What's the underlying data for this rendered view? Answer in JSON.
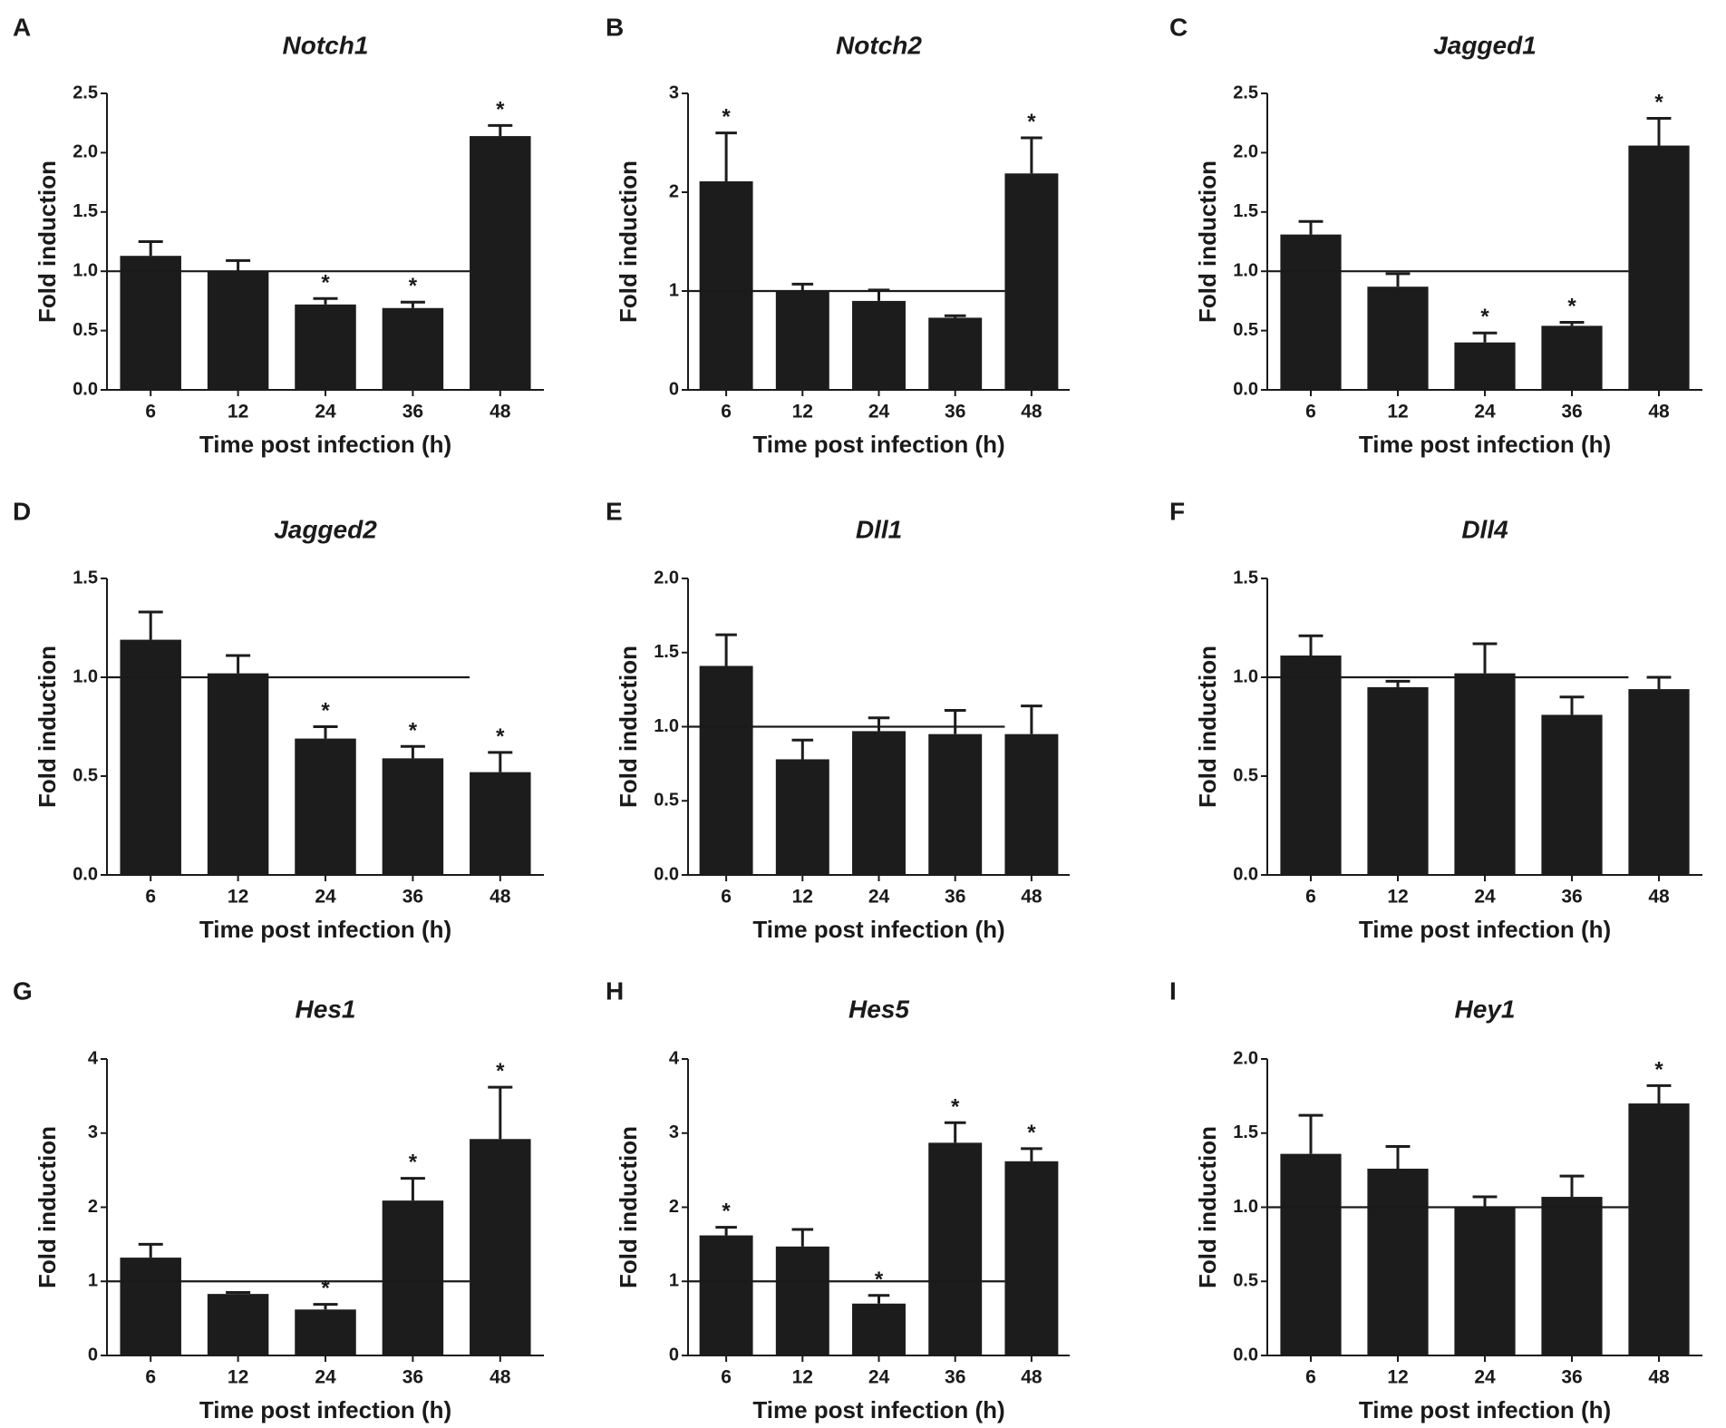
{
  "chart_data": [
    {
      "type": "bar",
      "panel": "A",
      "title": "Notch1",
      "xlabel": "Time post infection (h)",
      "ylabel": "Fold induction",
      "categories": [
        "6",
        "12",
        "24",
        "36",
        "48"
      ],
      "values": [
        1.13,
        1.0,
        0.72,
        0.69,
        2.14
      ],
      "errors": [
        0.12,
        0.09,
        0.05,
        0.05,
        0.09
      ],
      "significant": [
        false,
        false,
        true,
        true,
        true
      ],
      "ylim": [
        0,
        2.5
      ],
      "yticks": [
        "0.0",
        "0.5",
        "1.0",
        "1.5",
        "2.0",
        "2.5"
      ],
      "reference_line": 1.0
    },
    {
      "type": "bar",
      "panel": "B",
      "title": "Notch2",
      "xlabel": "Time post infection (h)",
      "ylabel": "Fold induction",
      "categories": [
        "6",
        "12",
        "24",
        "36",
        "48"
      ],
      "values": [
        2.11,
        1.0,
        0.9,
        0.73,
        2.19
      ],
      "errors": [
        0.49,
        0.07,
        0.11,
        0.02,
        0.36
      ],
      "significant": [
        true,
        false,
        false,
        false,
        true
      ],
      "ylim": [
        0,
        3
      ],
      "yticks": [
        "0",
        "1",
        "2",
        "3"
      ],
      "reference_line": 1.0
    },
    {
      "type": "bar",
      "panel": "C",
      "title": "Jagged1",
      "xlabel": "Time post infection (h)",
      "ylabel": "Fold induction",
      "categories": [
        "6",
        "12",
        "24",
        "36",
        "48"
      ],
      "values": [
        1.31,
        0.87,
        0.4,
        0.54,
        2.06
      ],
      "errors": [
        0.11,
        0.11,
        0.08,
        0.03,
        0.23
      ],
      "significant": [
        false,
        false,
        true,
        true,
        true
      ],
      "ylim": [
        0,
        2.5
      ],
      "yticks": [
        "0.0",
        "0.5",
        "1.0",
        "1.5",
        "2.0",
        "2.5"
      ],
      "reference_line": 1.0
    },
    {
      "type": "bar",
      "panel": "D",
      "title": "Jagged2",
      "xlabel": "Time post infection (h)",
      "ylabel": "Fold induction",
      "categories": [
        "6",
        "12",
        "24",
        "36",
        "48"
      ],
      "values": [
        1.19,
        1.02,
        0.69,
        0.59,
        0.52
      ],
      "errors": [
        0.14,
        0.09,
        0.06,
        0.06,
        0.1
      ],
      "significant": [
        false,
        false,
        true,
        true,
        true
      ],
      "ylim": [
        0,
        1.5
      ],
      "yticks": [
        "0.0",
        "0.5",
        "1.0",
        "1.5"
      ],
      "reference_line": 1.0
    },
    {
      "type": "bar",
      "panel": "E",
      "title": "Dll1",
      "xlabel": "Time post infection (h)",
      "ylabel": "Fold induction",
      "categories": [
        "6",
        "12",
        "24",
        "36",
        "48"
      ],
      "values": [
        1.41,
        0.78,
        0.97,
        0.95,
        0.95
      ],
      "errors": [
        0.21,
        0.13,
        0.09,
        0.16,
        0.19
      ],
      "significant": [
        false,
        false,
        false,
        false,
        false
      ],
      "ylim": [
        0,
        2.0
      ],
      "yticks": [
        "0.0",
        "0.5",
        "1.0",
        "1.5",
        "2.0"
      ],
      "reference_line": 1.0
    },
    {
      "type": "bar",
      "panel": "F",
      "title": "Dll4",
      "xlabel": "Time post infection (h)",
      "ylabel": "Fold induction",
      "categories": [
        "6",
        "12",
        "24",
        "36",
        "48"
      ],
      "values": [
        1.11,
        0.95,
        1.02,
        0.81,
        0.94
      ],
      "errors": [
        0.1,
        0.03,
        0.15,
        0.09,
        0.06
      ],
      "significant": [
        false,
        false,
        false,
        false,
        false
      ],
      "ylim": [
        0,
        1.5
      ],
      "yticks": [
        "0.0",
        "0.5",
        "1.0",
        "1.5"
      ],
      "reference_line": 1.0
    },
    {
      "type": "bar",
      "panel": "G",
      "title": "Hes1",
      "xlabel": "Time post infection (h)",
      "ylabel": "Fold induction",
      "categories": [
        "6",
        "12",
        "24",
        "36",
        "48"
      ],
      "values": [
        1.32,
        0.83,
        0.62,
        2.09,
        2.92
      ],
      "errors": [
        0.18,
        0.02,
        0.07,
        0.3,
        0.7
      ],
      "significant": [
        false,
        false,
        true,
        true,
        true
      ],
      "ylim": [
        0,
        4
      ],
      "yticks": [
        "0",
        "1",
        "2",
        "3",
        "4"
      ],
      "reference_line": 1.0
    },
    {
      "type": "bar",
      "panel": "H",
      "title": "Hes5",
      "xlabel": "Time post infection (h)",
      "ylabel": "Fold induction",
      "categories": [
        "6",
        "12",
        "24",
        "36",
        "48"
      ],
      "values": [
        1.62,
        1.47,
        0.7,
        2.87,
        2.62
      ],
      "errors": [
        0.11,
        0.23,
        0.11,
        0.27,
        0.17
      ],
      "significant": [
        true,
        false,
        true,
        true,
        true
      ],
      "ylim": [
        0,
        4
      ],
      "yticks": [
        "0",
        "1",
        "2",
        "3",
        "4"
      ],
      "reference_line": 1.0
    },
    {
      "type": "bar",
      "panel": "I",
      "title": "Hey1",
      "xlabel": "Time post infection (h)",
      "ylabel": "Fold induction",
      "categories": [
        "6",
        "12",
        "24",
        "36",
        "48"
      ],
      "values": [
        1.36,
        1.26,
        1.0,
        1.07,
        1.7
      ],
      "errors": [
        0.26,
        0.15,
        0.07,
        0.14,
        0.12
      ],
      "significant": [
        false,
        false,
        false,
        false,
        true
      ],
      "ylim": [
        0,
        2.0
      ],
      "yticks": [
        "0.0",
        "0.5",
        "1.0",
        "1.5",
        "2.0"
      ],
      "reference_line": 1.0
    }
  ],
  "significance_symbol": "*"
}
